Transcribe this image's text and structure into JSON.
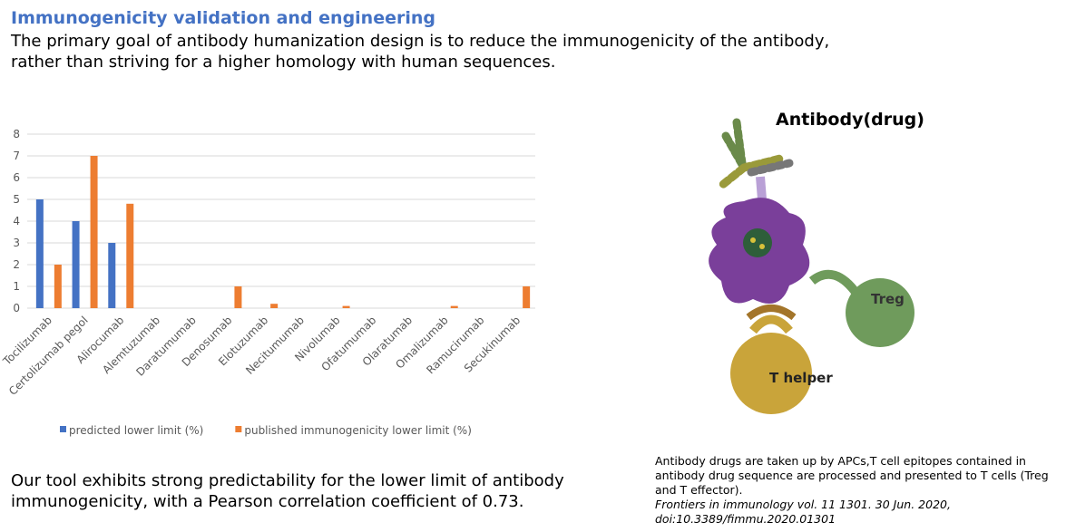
{
  "header": {
    "title": "Immunogenicity validation and engineering",
    "lines": [
      "The primary goal of antibody humanization design is to reduce the immunogenicity of the antibody,",
      "rather than striving for a higher homology with human sequences."
    ]
  },
  "chart_data": {
    "type": "bar",
    "categories": [
      "Tocilizumab",
      "Certolizumab pegol",
      "Alirocumab",
      "Alemtuzumab",
      "Daratumumab",
      "Denosumab",
      "Elotuzumab",
      "Necitumumab",
      "Nivolumab",
      "Ofatumumab",
      "Olaratumab",
      "Omalizumab",
      "Ramucirumab",
      "Secukinumab"
    ],
    "series": [
      {
        "name": "predicted lower limit (%)",
        "color": "#4472c4",
        "values": [
          5,
          4,
          3,
          0,
          0,
          0,
          0,
          0,
          0,
          0,
          0,
          0,
          0,
          0
        ]
      },
      {
        "name": "published immunogenicity lower limit (%)",
        "color": "#ed7d31",
        "values": [
          2,
          7,
          4.8,
          0,
          0,
          1,
          0.2,
          0,
          0.1,
          0,
          0,
          0.1,
          0,
          1
        ]
      }
    ],
    "ylim": [
      0,
      8
    ],
    "yticks": [
      0,
      1,
      2,
      3,
      4,
      5,
      6,
      7,
      8
    ],
    "grid": true,
    "legend": "bottom"
  },
  "conclusion": {
    "lines": [
      "Our tool exhibits strong predictability for the lower limit of antibody",
      "immunogenicity, with a Pearson correlation coefficient of 0.73."
    ]
  },
  "diagram": {
    "antibody": "Antibody(drug)",
    "treg": "Treg",
    "thelper": "T helper"
  },
  "caption": {
    "lines": [
      "Antibody drugs are taken up by APCs,T cell epitopes contained in",
      "antibody drug sequence are processed and presented to T cells (Treg",
      "and T effector)."
    ],
    "citation": [
      "Frontiers in immunology vol. 11 1301. 30 Jun. 2020,",
      "doi:10.3389/fimmu.2020.01301"
    ]
  }
}
